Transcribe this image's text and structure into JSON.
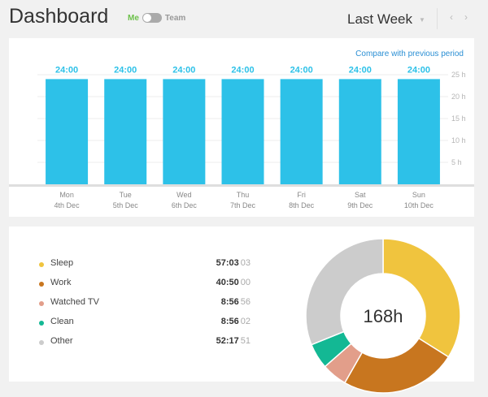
{
  "header": {
    "title": "Dashboard",
    "toggle": {
      "left": "Me",
      "right": "Team",
      "selected": "Me"
    },
    "period": "Last Week"
  },
  "bar_card": {
    "compare_link": "Compare with previous period"
  },
  "pie_card": {
    "center_label": "168h",
    "items": [
      {
        "name": "Sleep",
        "time": "57:03",
        "seconds": "03",
        "color": "#f0c43e"
      },
      {
        "name": "Work",
        "time": "40:50",
        "seconds": "00",
        "color": "#c8761f"
      },
      {
        "name": "Watched TV",
        "time": "8:56",
        "seconds": "56",
        "color": "#e29e8a"
      },
      {
        "name": "Clean",
        "time": "8:56",
        "seconds": "02",
        "color": "#13b894"
      },
      {
        "name": "Other",
        "time": "52:17",
        "seconds": "51",
        "color": "#cccccc"
      }
    ]
  },
  "chart_data": [
    {
      "type": "bar",
      "categories": [
        "Mon",
        "Tue",
        "Wed",
        "Thu",
        "Fri",
        "Sat",
        "Sun"
      ],
      "dates": [
        "4th Dec",
        "5th Dec",
        "6th Dec",
        "7th Dec",
        "8th Dec",
        "9th Dec",
        "10th Dec"
      ],
      "values": [
        24,
        24,
        24,
        24,
        24,
        24,
        24
      ],
      "data_labels": [
        "24:00",
        "24:00",
        "24:00",
        "24:00",
        "24:00",
        "24:00",
        "24:00"
      ],
      "yticks": [
        "25 h",
        "20 h",
        "15 h",
        "10 h",
        "5 h"
      ],
      "ytick_values": [
        25,
        20,
        15,
        10,
        5
      ],
      "ylim": [
        0,
        25
      ],
      "color": "#2dc1e8",
      "grid": true
    },
    {
      "type": "pie",
      "categories": [
        "Sleep",
        "Work",
        "Watched TV",
        "Clean",
        "Other"
      ],
      "values": [
        57.05,
        40.83,
        8.93,
        8.93,
        52.28
      ],
      "colors": [
        "#f0c43e",
        "#c8761f",
        "#e29e8a",
        "#13b894",
        "#cccccc"
      ],
      "center_label": "168h"
    }
  ]
}
